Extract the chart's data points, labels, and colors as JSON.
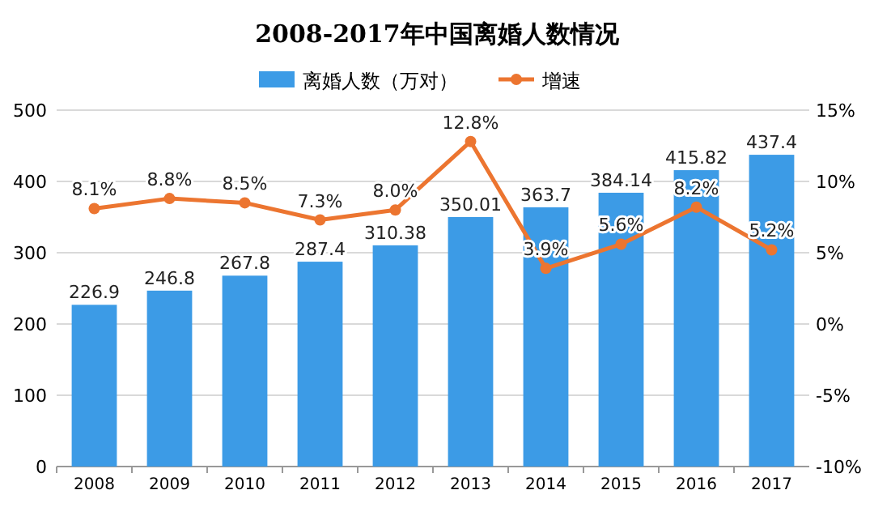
{
  "chart_data": {
    "type": "bar",
    "title": "2008-2017年中国离婚人数情况",
    "categories": [
      "2008",
      "2009",
      "2010",
      "2011",
      "2012",
      "2013",
      "2014",
      "2015",
      "2016",
      "2017"
    ],
    "series": [
      {
        "name": "离婚人数（万对）",
        "color": "#3c9be6",
        "values": [
          226.9,
          246.8,
          267.8,
          287.4,
          310.38,
          350.01,
          363.7,
          384.14,
          415.82,
          437.4
        ],
        "value_labels": [
          "226.9",
          "246.8",
          "267.8",
          "287.4",
          "310.38",
          "350.01",
          "363.7",
          "384.14",
          "415.82",
          "437.4"
        ]
      },
      {
        "name": "增速",
        "type": "line",
        "axis": "y2",
        "color": "#ec7530",
        "marker": "circle",
        "values": [
          8.1,
          8.8,
          8.5,
          7.3,
          8.0,
          12.8,
          3.9,
          5.6,
          8.2,
          5.2
        ],
        "value_labels": [
          "8.1%",
          "8.8%",
          "8.5%",
          "7.3%",
          "8.0%",
          "12.8%",
          "3.9%",
          "5.6%",
          "8.2%",
          "5.2%"
        ]
      }
    ],
    "ylim": [
      0,
      500
    ],
    "yticks": [
      0,
      100,
      200,
      300,
      400,
      500
    ],
    "y2lim": [
      -10,
      15
    ],
    "y2ticks": [
      {
        "value": -10,
        "label": "-10%"
      },
      {
        "value": -5,
        "label": "-5%"
      },
      {
        "value": 0,
        "label": "0%"
      },
      {
        "value": 5,
        "label": "5%"
      },
      {
        "value": 10,
        "label": "10%"
      },
      {
        "value": 15,
        "label": "15%"
      }
    ],
    "grid": "y",
    "legend": "top"
  }
}
